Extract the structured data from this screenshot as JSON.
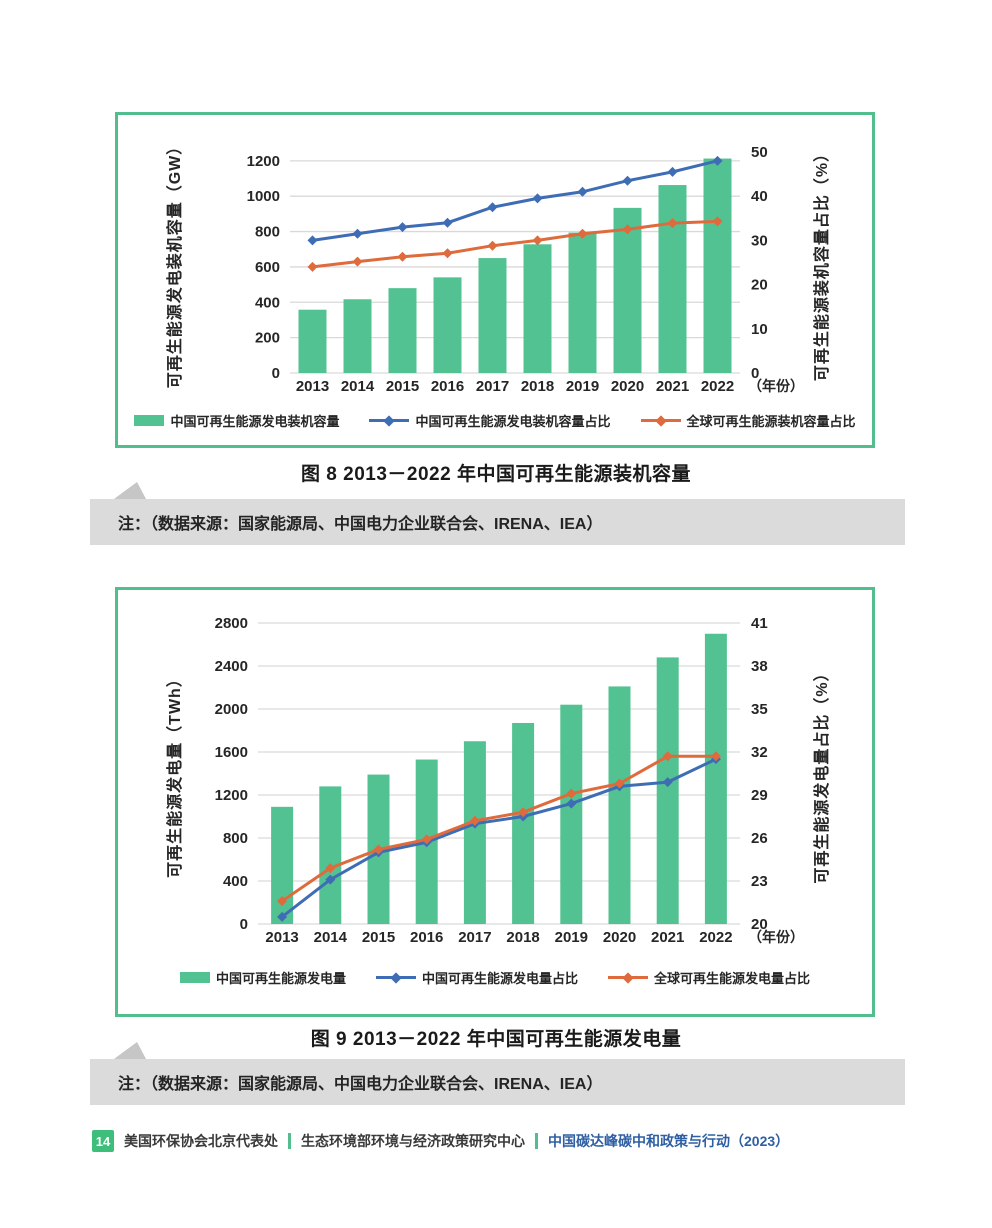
{
  "figures": [
    {
      "title": "图 8  2013－2022 年中国可再生能源装机容量",
      "note": "注：（数据来源：国家能源局、中国电力企业联合会、IRENA、IEA）"
    },
    {
      "title": "图 9  2013－2022 年中国可再生能源发电量",
      "note": "注：（数据来源：国家能源局、中国电力企业联合会、IRENA、IEA）"
    }
  ],
  "chart_data": [
    {
      "type": "bar",
      "title": "图 8  2013－2022 年中国可再生能源装机容量",
      "categories": [
        "2013",
        "2014",
        "2015",
        "2016",
        "2017",
        "2018",
        "2019",
        "2020",
        "2021",
        "2022"
      ],
      "series": [
        {
          "name": "中国可再生能源发电装机容量",
          "kind": "bar",
          "axis": "left",
          "color": "#53C292",
          "values": [
            358,
            417,
            480,
            541,
            650,
            728,
            794,
            934,
            1063,
            1213
          ]
        },
        {
          "name": "中国可再生能源发电装机容量占比",
          "kind": "line",
          "axis": "right",
          "color": "#3E6DB5",
          "values": [
            30,
            31.5,
            33,
            34,
            37.5,
            39.5,
            41,
            43.5,
            45.5,
            48
          ]
        },
        {
          "name": "全球可再生能源装机容量占比",
          "kind": "line",
          "axis": "right",
          "color": "#DF6A3C",
          "values": [
            24,
            25.2,
            26.3,
            27.1,
            28.8,
            30,
            31.5,
            32.5,
            33.9,
            34.3
          ]
        }
      ],
      "left_axis": {
        "label": "可再生能源发电装机容量（GW）",
        "min": 0,
        "max": 1250,
        "tick_min": 0,
        "tick_max": 1200,
        "tick_step": 200
      },
      "right_axis": {
        "label": "可再生能源装机容量占比（%）",
        "min": 0,
        "max": 50,
        "tick_min": 0,
        "tick_max": 50,
        "tick_step": 10
      },
      "x_axis_label": "（年份）",
      "grid": true,
      "legend_position": "bottom"
    },
    {
      "type": "bar",
      "title": "图 9  2013－2022 年中国可再生能源发电量",
      "categories": [
        "2013",
        "2014",
        "2015",
        "2016",
        "2017",
        "2018",
        "2019",
        "2020",
        "2021",
        "2022"
      ],
      "series": [
        {
          "name": "中国可再生能源发电量",
          "kind": "bar",
          "axis": "left",
          "color": "#53C292",
          "values": [
            1090,
            1280,
            1390,
            1530,
            1700,
            1870,
            2040,
            2210,
            2480,
            2700
          ]
        },
        {
          "name": "中国可再生能源发电量占比",
          "kind": "line",
          "axis": "right",
          "color": "#3E6DB5",
          "values": [
            20.5,
            23.1,
            25.0,
            25.7,
            27.0,
            27.5,
            28.4,
            29.6,
            29.9,
            31.5
          ]
        },
        {
          "name": "全球可再生能源发电量占比",
          "kind": "line",
          "axis": "right",
          "color": "#DF6A3C",
          "values": [
            21.6,
            23.9,
            25.2,
            25.9,
            27.2,
            27.8,
            29.1,
            29.8,
            31.7,
            31.7
          ]
        }
      ],
      "left_axis": {
        "label": "可再生能源发电量（TWh）",
        "min": 0,
        "max": 2800,
        "tick_min": 0,
        "tick_max": 2800,
        "tick_step": 400
      },
      "right_axis": {
        "label": "可再生能源发电量占比（%）",
        "min": 20,
        "max": 41,
        "tick_min": 20,
        "tick_max": 41,
        "tick_step": 3
      },
      "x_axis_label": "（年份）",
      "grid": true,
      "legend_position": "bottom"
    }
  ],
  "footer": {
    "page_number": "14",
    "org1": "美国环保协会北京代表处",
    "org2": "生态环境部环境与经济政策研究中心",
    "doc_title": "中国碳达峰碳中和政策与行动（2023）"
  },
  "colors": {
    "panel_border": "#52BE8E",
    "bar_green": "#53C292",
    "line_blue": "#3E6DB5",
    "line_orange": "#DF6A3C",
    "gridline": "#D9D9D9",
    "note_background": "#DBDBDB",
    "footer_green": "#3DBE7B",
    "footer_blue": "#2E5FA3"
  }
}
